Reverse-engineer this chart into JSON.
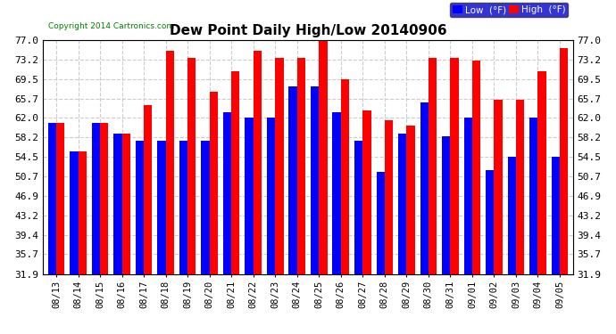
{
  "title": "Dew Point Daily High/Low 20140906",
  "copyright": "Copyright 2014 Cartronics.com",
  "dates": [
    "08/13",
    "08/14",
    "08/15",
    "08/16",
    "08/17",
    "08/18",
    "08/19",
    "08/20",
    "08/21",
    "08/22",
    "08/23",
    "08/24",
    "08/25",
    "08/26",
    "08/27",
    "08/28",
    "08/29",
    "08/30",
    "08/31",
    "09/01",
    "09/02",
    "09/03",
    "09/04",
    "09/05"
  ],
  "low": [
    61.0,
    55.5,
    61.0,
    59.0,
    57.5,
    57.5,
    57.5,
    57.5,
    63.0,
    62.0,
    62.0,
    68.0,
    68.0,
    63.0,
    57.5,
    51.5,
    59.0,
    65.0,
    58.5,
    62.0,
    52.0,
    54.5,
    62.0,
    54.5
  ],
  "high": [
    61.0,
    55.5,
    61.0,
    59.0,
    64.5,
    75.0,
    73.5,
    67.0,
    71.0,
    75.0,
    73.5,
    73.5,
    77.0,
    69.5,
    63.5,
    61.5,
    60.5,
    73.5,
    73.5,
    73.0,
    65.5,
    65.5,
    71.0,
    75.5
  ],
  "low_color": "#0000ff",
  "high_color": "#ff0000",
  "bg_color": "#ffffff",
  "grid_color": "#cccccc",
  "yticks": [
    31.9,
    35.7,
    39.4,
    43.2,
    46.9,
    50.7,
    54.5,
    58.2,
    62.0,
    65.7,
    69.5,
    73.2,
    77.0
  ],
  "ymin": 31.9,
  "ymax": 77.0,
  "legend_low_label": "Low  (°F)",
  "legend_high_label": "High  (°F)"
}
